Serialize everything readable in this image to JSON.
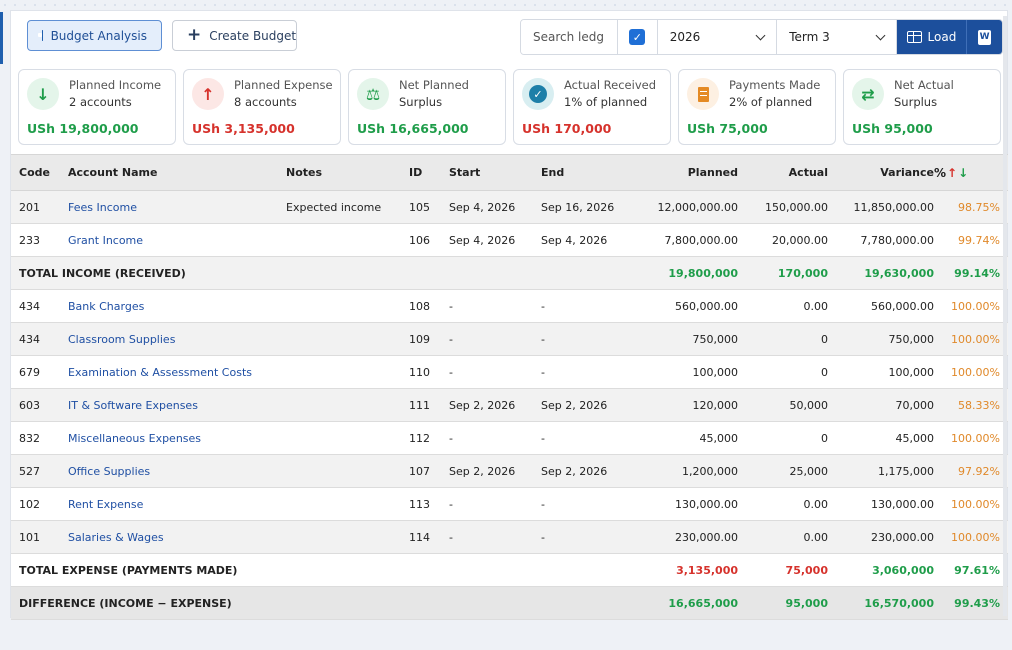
{
  "toolbar": {
    "budget_analysis_label": "Budget Analysis",
    "create_budget_label": "Create Budget",
    "search_placeholder": "Search ledg",
    "year_value": "2026",
    "term_value": "Term 3",
    "load_label": "Load",
    "word_icon_label": "W"
  },
  "cards": [
    {
      "title": "Planned Income",
      "sub": "2 accounts",
      "value": "USh 19,800,000",
      "icon": "arrow-down-icon",
      "tone": "green"
    },
    {
      "title": "Planned Expense",
      "sub": "8 accounts",
      "value": "USh 3,135,000",
      "icon": "arrow-up-icon",
      "tone": "red"
    },
    {
      "title": "Net Planned",
      "sub": "Surplus",
      "value": "USh 16,665,000",
      "icon": "scale-icon",
      "tone": "green"
    },
    {
      "title": "Actual Received",
      "sub": "1% of planned",
      "value": "USh 170,000",
      "icon": "check-circle-icon",
      "tone": "red"
    },
    {
      "title": "Payments Made",
      "sub": "2% of planned",
      "value": "USh 75,000",
      "icon": "receipt-icon",
      "tone": "green"
    },
    {
      "title": "Net Actual",
      "sub": "Surplus",
      "value": "USh 95,000",
      "icon": "exchange-icon",
      "tone": "green"
    }
  ],
  "table": {
    "headers": {
      "code": "Code",
      "account": "Account Name",
      "notes": "Notes",
      "id": "ID",
      "start": "Start",
      "end": "End",
      "planned": "Planned",
      "actual": "Actual",
      "variance": "Variance",
      "pct": "%"
    },
    "income_rows": [
      {
        "code": "201",
        "account": "Fees Income",
        "notes": "Expected income",
        "id": "105",
        "start": "Sep 4, 2026",
        "end": "Sep 16, 2026",
        "planned": "12,000,000.00",
        "actual": "150,000.00",
        "variance": "11,850,000.00",
        "pct": "98.75%"
      },
      {
        "code": "233",
        "account": "Grant Income",
        "notes": "",
        "id": "106",
        "start": "Sep 4, 2026",
        "end": "Sep 4, 2026",
        "planned": "7,800,000.00",
        "actual": "20,000.00",
        "variance": "7,780,000.00",
        "pct": "99.74%"
      }
    ],
    "income_total": {
      "label": "TOTAL INCOME (RECEIVED)",
      "planned": "19,800,000",
      "actual": "170,000",
      "variance": "19,630,000",
      "pct": "99.14%"
    },
    "expense_rows": [
      {
        "code": "434",
        "account": "Bank Charges",
        "notes": "",
        "id": "108",
        "start": "-",
        "end": "-",
        "planned": "560,000.00",
        "actual": "0.00",
        "variance": "560,000.00",
        "pct": "100.00%"
      },
      {
        "code": "434",
        "account": "Classroom Supplies",
        "notes": "",
        "id": "109",
        "start": "-",
        "end": "-",
        "planned": "750,000",
        "actual": "0",
        "variance": "750,000",
        "pct": "100.00%"
      },
      {
        "code": "679",
        "account": "Examination & Assessment Costs",
        "notes": "",
        "id": "110",
        "start": "-",
        "end": "-",
        "planned": "100,000",
        "actual": "0",
        "variance": "100,000",
        "pct": "100.00%"
      },
      {
        "code": "603",
        "account": "IT & Software Expenses",
        "notes": "",
        "id": "111",
        "start": "Sep 2, 2026",
        "end": "Sep 2, 2026",
        "planned": "120,000",
        "actual": "50,000",
        "variance": "70,000",
        "pct": "58.33%"
      },
      {
        "code": "832",
        "account": "Miscellaneous Expenses",
        "notes": "",
        "id": "112",
        "start": "-",
        "end": "-",
        "planned": "45,000",
        "actual": "0",
        "variance": "45,000",
        "pct": "100.00%"
      },
      {
        "code": "527",
        "account": "Office Supplies",
        "notes": "",
        "id": "107",
        "start": "Sep 2, 2026",
        "end": "Sep 2, 2026",
        "planned": "1,200,000",
        "actual": "25,000",
        "variance": "1,175,000",
        "pct": "97.92%"
      },
      {
        "code": "102",
        "account": "Rent Expense",
        "notes": "",
        "id": "113",
        "start": "-",
        "end": "-",
        "planned": "130,000.00",
        "actual": "0.00",
        "variance": "130,000.00",
        "pct": "100.00%"
      },
      {
        "code": "101",
        "account": "Salaries & Wages",
        "notes": "",
        "id": "114",
        "start": "-",
        "end": "-",
        "planned": "230,000.00",
        "actual": "0.00",
        "variance": "230,000.00",
        "pct": "100.00%"
      }
    ],
    "expense_total": {
      "label": "TOTAL EXPENSE (PAYMENTS MADE)",
      "planned": "3,135,000",
      "actual": "75,000",
      "variance": "3,060,000",
      "pct": "97.61%"
    },
    "difference": {
      "label": "DIFFERENCE (INCOME − EXPENSE)",
      "planned": "16,665,000",
      "actual": "95,000",
      "variance": "16,570,000",
      "pct": "99.43%"
    }
  },
  "colors": {
    "green": "#1f9d4a",
    "red": "#d6322c",
    "orange": "#e0892a",
    "link": "#1f4fa3",
    "primary": "#1c4f9c"
  }
}
